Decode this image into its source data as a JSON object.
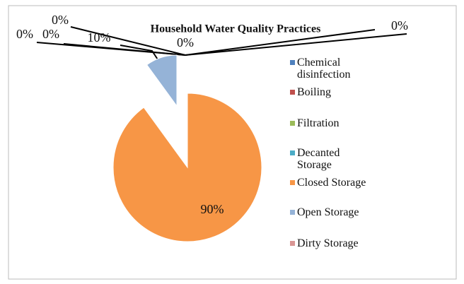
{
  "chart_data": {
    "type": "pie",
    "title": "Household Water Quality Practices",
    "categories": [
      "Chemical disinfection",
      "Boiling",
      "Filtration",
      "Decanted Storage",
      "Closed Storage",
      "Open Storage",
      "Dirty Storage"
    ],
    "values": [
      0,
      0,
      0,
      0,
      90,
      10,
      0
    ],
    "value_labels": [
      "0%",
      "0%",
      "0%",
      "0%",
      "90%",
      "10%",
      "0%"
    ],
    "colors": [
      "#4f81bd",
      "#c0504d",
      "#9bbb59",
      "#4bacc6",
      "#f79646",
      "#95b3d7",
      "#d99694"
    ],
    "legend": "right"
  }
}
